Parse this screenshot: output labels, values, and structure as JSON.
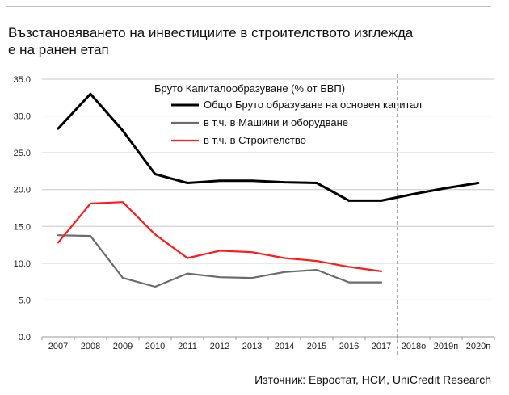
{
  "title_lines": [
    "Възстановяването на инвестициите в строителството изглежда",
    "е на ранен етап"
  ],
  "source": "Източник: Евростат, НСИ, UniCredit Research",
  "chart_data": {
    "type": "line",
    "legend_title": "Бруто Капиталообразуване (% от БВП)",
    "legend_position": "top",
    "categories": [
      "2007",
      "2008",
      "2009",
      "2010",
      "2011",
      "2012",
      "2013",
      "2014",
      "2015",
      "2016",
      "2017",
      "2018o",
      "2019п",
      "2020п"
    ],
    "ylim": [
      0,
      35
    ],
    "yticks": [
      "0.0",
      "5.0",
      "10.0",
      "15.0",
      "20.0",
      "25.0",
      "30.0",
      "35.0"
    ],
    "ytick_values": [
      0,
      5,
      10,
      15,
      20,
      25,
      30,
      35
    ],
    "grid": true,
    "forecast_divider_after": "2017",
    "series": [
      {
        "name": "Общо Бруто образуване на основен капитал",
        "color": "#000000",
        "values": [
          28.3,
          33.0,
          28.0,
          22.1,
          20.9,
          21.2,
          21.2,
          21.0,
          20.9,
          18.5,
          18.5,
          19.4,
          20.2,
          20.9
        ]
      },
      {
        "name": "в т.ч. в Машини и оборудване",
        "color": "#6b6b6b",
        "values": [
          13.8,
          13.7,
          8.0,
          6.8,
          8.6,
          8.1,
          8.0,
          8.8,
          9.1,
          7.4,
          7.4,
          null,
          null,
          null
        ]
      },
      {
        "name": "в т.ч. в Строителство",
        "color": "#ff1a1a",
        "values": [
          12.8,
          18.1,
          18.3,
          13.9,
          10.7,
          11.7,
          11.5,
          10.7,
          10.3,
          9.5,
          8.9,
          null,
          null,
          null
        ]
      }
    ]
  }
}
